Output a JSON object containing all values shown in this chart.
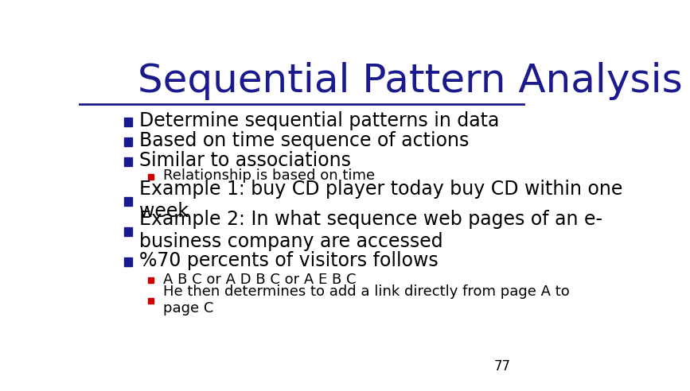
{
  "title": "Sequential Pattern Analysis",
  "title_color": "#1a1a8c",
  "bg_color": "#ffffff",
  "slide_number": "77",
  "bullet_color": "#1a1a8c",
  "sub_bullet_color": "#cc0000",
  "text_color": "#000000",
  "title_font_size": 36,
  "body_font_size": 17,
  "sub_font_size": 13,
  "bullets": [
    {
      "level": 1,
      "text": "Determine sequential patterns in data"
    },
    {
      "level": 1,
      "text": "Based on time sequence of actions"
    },
    {
      "level": 1,
      "text": "Similar to associations"
    },
    {
      "level": 2,
      "text": "Relationship is based on time"
    },
    {
      "level": 1,
      "text": "Example 1: buy CD player today buy CD within one\nweek"
    },
    {
      "level": 1,
      "text": "Example 2: In what sequence web pages of an e-\nbusiness company are accessed"
    },
    {
      "level": 1,
      "text": "%70 percents of visitors follows"
    },
    {
      "level": 2,
      "text": "A B C or A D B C or A E B C"
    },
    {
      "level": 2,
      "text": "He then determines to add a link directly from page A to\npage C"
    }
  ]
}
